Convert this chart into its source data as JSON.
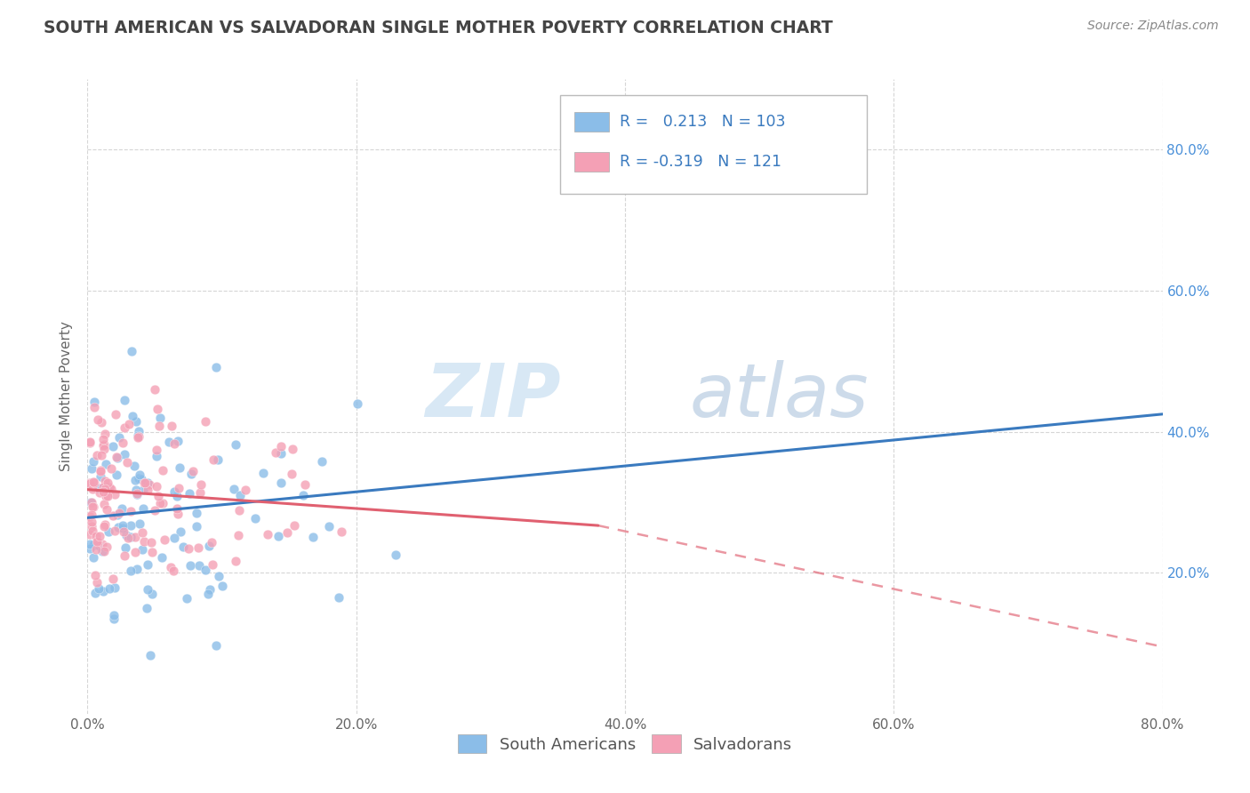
{
  "title": "SOUTH AMERICAN VS SALVADORAN SINGLE MOTHER POVERTY CORRELATION CHART",
  "source": "Source: ZipAtlas.com",
  "ylabel": "Single Mother Poverty",
  "xlim": [
    0.0,
    0.8
  ],
  "ylim": [
    0.0,
    0.9
  ],
  "legend_labels": [
    "South Americans",
    "Salvadorans"
  ],
  "blue_color": "#8BBDE8",
  "pink_color": "#F4A0B5",
  "blue_line_color": "#3A7ABF",
  "pink_line_color": "#E06070",
  "R_blue": 0.213,
  "N_blue": 103,
  "R_pink": -0.319,
  "N_pink": 121,
  "title_color": "#444444",
  "source_color": "#888888",
  "legend_text_color": "#3A7ABF",
  "grid_color": "#CCCCCC",
  "background_color": "#FFFFFF",
  "blue_line_start_y": 0.278,
  "blue_line_end_y": 0.425,
  "pink_line_start_y": 0.318,
  "pink_line_solid_end_x": 0.38,
  "pink_line_solid_end_y": 0.267,
  "pink_line_dash_end_x": 0.8,
  "pink_line_dash_end_y": 0.095
}
